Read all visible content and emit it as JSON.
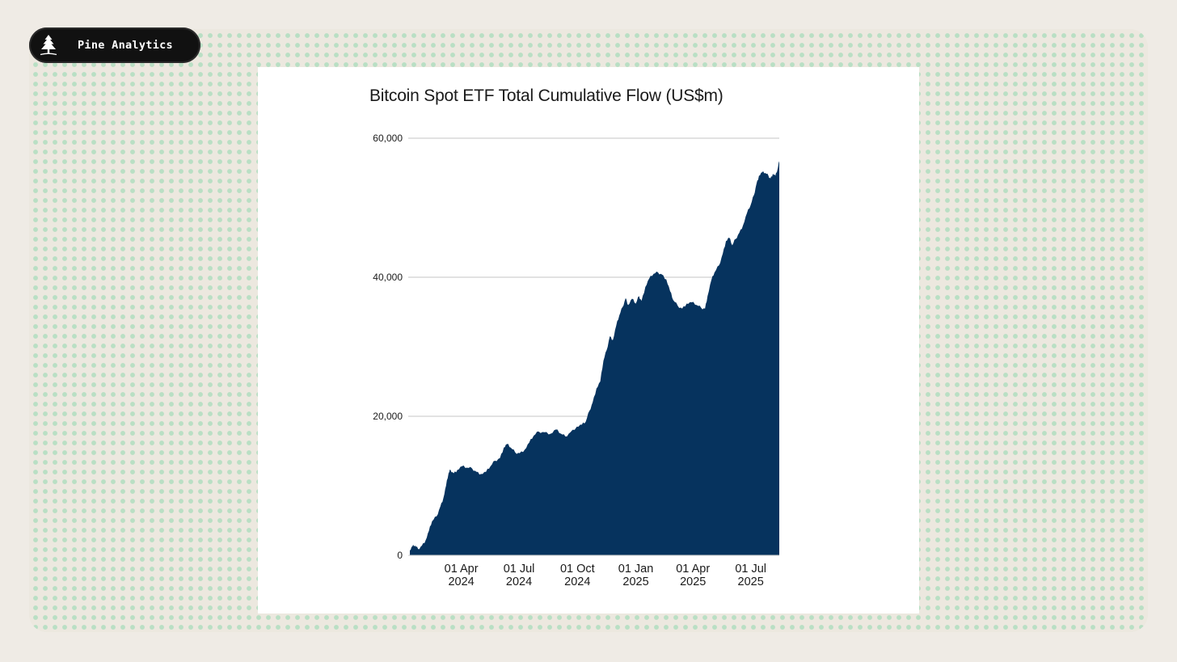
{
  "brand": {
    "name": "Pine Analytics",
    "icon": "pine-tree-icon"
  },
  "colors": {
    "area_fill": "#06335e",
    "gridline": "#d9d9d9",
    "brand_badge": "#111111",
    "dot_pattern": "#b9dfc4"
  },
  "chart_data": {
    "type": "area",
    "title": "Bitcoin Spot ETF Total Cumulative Flow (US$m)",
    "xlabel": "",
    "ylabel": "",
    "ylim": [
      0,
      60000
    ],
    "y_ticks": [
      {
        "value": 0,
        "label": "0"
      },
      {
        "value": 20000,
        "label": "20,000"
      },
      {
        "value": 40000,
        "label": "40,000"
      },
      {
        "value": 60000,
        "label": "60,000"
      }
    ],
    "x_range": [
      "2024-01-11",
      "2025-08-15"
    ],
    "x_ticks": [
      {
        "date": "2024-04-01",
        "line1": "01 Apr",
        "line2": "2024"
      },
      {
        "date": "2024-07-01",
        "line1": "01 Jul",
        "line2": "2024"
      },
      {
        "date": "2024-10-01",
        "line1": "01 Oct",
        "line2": "2024"
      },
      {
        "date": "2025-01-01",
        "line1": "01 Jan",
        "line2": "2025"
      },
      {
        "date": "2025-04-01",
        "line1": "01 Apr",
        "line2": "2025"
      },
      {
        "date": "2025-07-01",
        "line1": "01 Jul",
        "line2": "2025"
      }
    ],
    "grid": true,
    "legend": "none",
    "series": [
      {
        "points": [
          [
            "2024-01-11",
            700
          ],
          [
            "2024-01-15",
            1300
          ],
          [
            "2024-01-19",
            1400
          ],
          [
            "2024-01-24",
            900
          ],
          [
            "2024-01-30",
            1400
          ],
          [
            "2024-02-05",
            2200
          ],
          [
            "2024-02-10",
            3500
          ],
          [
            "2024-02-15",
            4900
          ],
          [
            "2024-02-22",
            5600
          ],
          [
            "2024-02-28",
            7000
          ],
          [
            "2024-03-04",
            8300
          ],
          [
            "2024-03-08",
            10000
          ],
          [
            "2024-03-12",
            11800
          ],
          [
            "2024-03-15",
            12300
          ],
          [
            "2024-03-20",
            11800
          ],
          [
            "2024-03-26",
            12300
          ],
          [
            "2024-04-02",
            12800
          ],
          [
            "2024-04-10",
            12600
          ],
          [
            "2024-04-18",
            12500
          ],
          [
            "2024-04-25",
            12000
          ],
          [
            "2024-05-02",
            11700
          ],
          [
            "2024-05-10",
            12000
          ],
          [
            "2024-05-17",
            12800
          ],
          [
            "2024-05-24",
            13600
          ],
          [
            "2024-06-01",
            14000
          ],
          [
            "2024-06-07",
            15500
          ],
          [
            "2024-06-12",
            16000
          ],
          [
            "2024-06-18",
            15500
          ],
          [
            "2024-06-25",
            14800
          ],
          [
            "2024-07-02",
            14700
          ],
          [
            "2024-07-10",
            15200
          ],
          [
            "2024-07-17",
            16200
          ],
          [
            "2024-07-24",
            17200
          ],
          [
            "2024-08-01",
            17800
          ],
          [
            "2024-08-10",
            17700
          ],
          [
            "2024-08-20",
            17500
          ],
          [
            "2024-08-28",
            18100
          ],
          [
            "2024-09-05",
            17500
          ],
          [
            "2024-09-12",
            17100
          ],
          [
            "2024-09-20",
            17700
          ],
          [
            "2024-09-30",
            18500
          ],
          [
            "2024-10-08",
            18800
          ],
          [
            "2024-10-14",
            19200
          ],
          [
            "2024-10-20",
            20800
          ],
          [
            "2024-10-25",
            22000
          ],
          [
            "2024-10-31",
            24000
          ],
          [
            "2024-11-06",
            25000
          ],
          [
            "2024-11-11",
            28000
          ],
          [
            "2024-11-16",
            29500
          ],
          [
            "2024-11-21",
            31500
          ],
          [
            "2024-11-26",
            31000
          ],
          [
            "2024-12-01",
            33000
          ],
          [
            "2024-12-06",
            34500
          ],
          [
            "2024-12-11",
            35700
          ],
          [
            "2024-12-16",
            37000
          ],
          [
            "2024-12-20",
            36000
          ],
          [
            "2024-12-26",
            36900
          ],
          [
            "2025-01-01",
            36200
          ],
          [
            "2025-01-06",
            37300
          ],
          [
            "2025-01-10",
            36600
          ],
          [
            "2025-01-16",
            38600
          ],
          [
            "2025-01-22",
            39800
          ],
          [
            "2025-01-29",
            40500
          ],
          [
            "2025-02-05",
            40700
          ],
          [
            "2025-02-11",
            40400
          ],
          [
            "2025-02-18",
            39700
          ],
          [
            "2025-02-24",
            38000
          ],
          [
            "2025-03-01",
            36700
          ],
          [
            "2025-03-08",
            35900
          ],
          [
            "2025-03-15",
            35500
          ],
          [
            "2025-03-22",
            36200
          ],
          [
            "2025-03-30",
            36400
          ],
          [
            "2025-04-07",
            36000
          ],
          [
            "2025-04-14",
            35600
          ],
          [
            "2025-04-20",
            35500
          ],
          [
            "2025-04-24",
            37300
          ],
          [
            "2025-04-30",
            39600
          ],
          [
            "2025-05-05",
            40700
          ],
          [
            "2025-05-12",
            41700
          ],
          [
            "2025-05-18",
            43400
          ],
          [
            "2025-05-23",
            45200
          ],
          [
            "2025-05-28",
            45700
          ],
          [
            "2025-06-02",
            44600
          ],
          [
            "2025-06-07",
            45500
          ],
          [
            "2025-06-13",
            46400
          ],
          [
            "2025-06-19",
            47500
          ],
          [
            "2025-06-25",
            49200
          ],
          [
            "2025-07-01",
            50400
          ],
          [
            "2025-07-06",
            51800
          ],
          [
            "2025-07-10",
            53400
          ],
          [
            "2025-07-14",
            54600
          ],
          [
            "2025-07-19",
            55100
          ],
          [
            "2025-07-24",
            55000
          ],
          [
            "2025-07-29",
            54600
          ],
          [
            "2025-08-01",
            54200
          ],
          [
            "2025-08-05",
            54900
          ],
          [
            "2025-08-09",
            54600
          ],
          [
            "2025-08-12",
            55400
          ],
          [
            "2025-08-15",
            56700
          ]
        ]
      }
    ]
  }
}
